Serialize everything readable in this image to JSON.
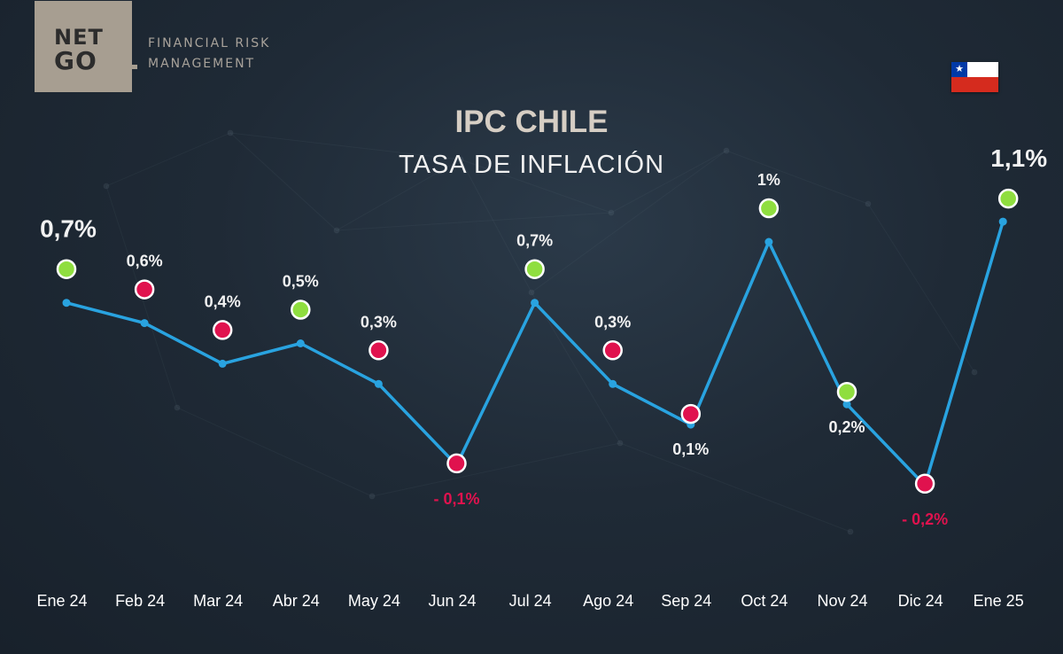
{
  "brand": {
    "logo_line1": "NET",
    "logo_line2": "GO",
    "tagline_line1": "FINANCIAL RISK",
    "tagline_line2": "MANAGEMENT"
  },
  "flag": {
    "icon": "chile-flag-icon",
    "star": "★"
  },
  "colors": {
    "line": "#29a3e0",
    "positive_marker": "#8fde3f",
    "negative_marker": "#e0124e",
    "label_text": "#f2f2f2",
    "negative_text": "#e0124e"
  },
  "chart_data": {
    "type": "line",
    "title": "IPC CHILE",
    "subtitle": "TASA DE INFLACIÓN",
    "categories": [
      "Ene 24",
      "Feb 24",
      "Mar 24",
      "Abr 24",
      "May 24",
      "Jun 24",
      "Jul 24",
      "Ago 24",
      "Sep 24",
      "Oct 24",
      "Nov 24",
      "Dic 24",
      "Ene 25"
    ],
    "values": [
      0.7,
      0.6,
      0.4,
      0.5,
      0.3,
      -0.1,
      0.7,
      0.3,
      0.1,
      1.0,
      0.2,
      -0.2,
      1.1
    ],
    "labels": [
      "0,7%",
      "0,6%",
      "0,4%",
      "0,5%",
      "0,3%",
      "- 0,1%",
      "0,7%",
      "0,3%",
      "0,1%",
      "1%",
      "0,2%",
      "- 0,2%",
      "1,1%"
    ],
    "marker_status": [
      "up",
      "down",
      "down",
      "up",
      "down",
      "down",
      "up",
      "down",
      "down",
      "up",
      "up",
      "down",
      "up"
    ],
    "label_position": [
      "above",
      "above",
      "above",
      "above",
      "above",
      "below",
      "above",
      "above",
      "below",
      "above",
      "below",
      "below",
      "above"
    ],
    "label_emphasis": [
      true,
      false,
      false,
      false,
      false,
      false,
      false,
      false,
      false,
      false,
      false,
      false,
      true
    ],
    "grid": false,
    "legend": "none"
  }
}
